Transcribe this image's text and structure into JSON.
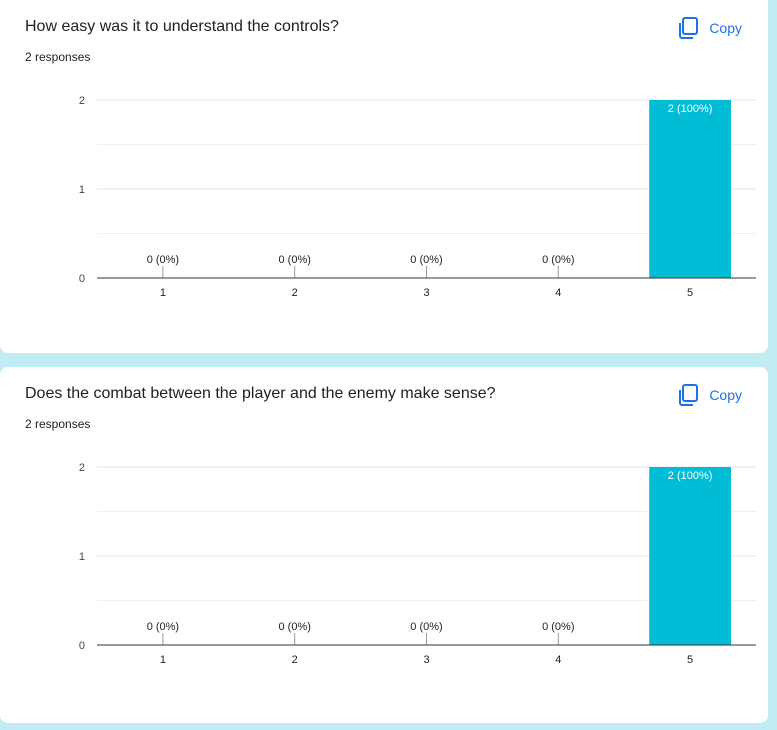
{
  "cards": [
    {
      "title": "How easy was it to understand the controls?",
      "responses": "2 responses",
      "copy_label": "Copy",
      "chart_data": {
        "type": "bar",
        "categories": [
          "1",
          "2",
          "3",
          "4",
          "5"
        ],
        "values": [
          0,
          0,
          0,
          0,
          2
        ],
        "data_labels": [
          "0 (0%)",
          "0 (0%)",
          "0 (0%)",
          "0 (0%)",
          "2 (100%)"
        ],
        "yticks": [
          "0",
          "1",
          "2"
        ],
        "ylim": [
          0,
          2
        ],
        "bar_color": "#00bcd4"
      }
    },
    {
      "title": "Does the combat between the player and the enemy make sense?",
      "responses": "2 responses",
      "copy_label": "Copy",
      "chart_data": {
        "type": "bar",
        "categories": [
          "1",
          "2",
          "3",
          "4",
          "5"
        ],
        "values": [
          0,
          0,
          0,
          0,
          2
        ],
        "data_labels": [
          "0 (0%)",
          "0 (0%)",
          "0 (0%)",
          "0 (0%)",
          "2 (100%)"
        ],
        "yticks": [
          "0",
          "1",
          "2"
        ],
        "ylim": [
          0,
          2
        ],
        "bar_color": "#00bcd4"
      }
    }
  ],
  "icons": {
    "copy": "copy-icon"
  },
  "colors": {
    "accent": "#1a73e8",
    "background": "#c1ecf3"
  }
}
